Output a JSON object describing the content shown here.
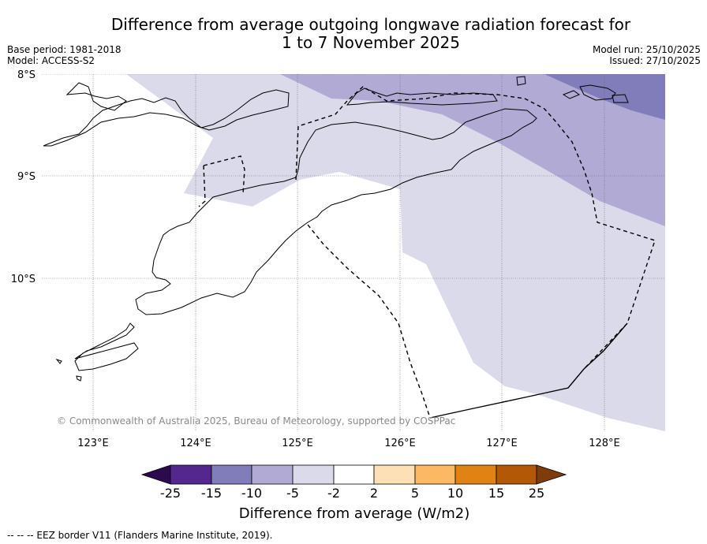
{
  "title": {
    "line1": "Difference from average outgoing longwave radiation forecast for",
    "line2": "1 to 7 November 2025"
  },
  "meta": {
    "base_period": "Base period: 1981-2018",
    "model": "Model: ACCESS-S2",
    "model_run": "Model run: 25/10/2025",
    "issued": "Issued: 27/10/2025"
  },
  "map": {
    "lat_labels": [
      "8°S",
      "9°S",
      "10°S"
    ],
    "lon_labels": [
      "123°E",
      "124°E",
      "125°E",
      "126°E",
      "127°E",
      "128°E"
    ],
    "copyright": "© Commonwealth of Australia 2025, Bureau of Meteorology, supported by COSPPac"
  },
  "colorbar": {
    "labels": [
      "-25",
      "-15",
      "-10",
      "-5",
      "-2",
      "2",
      "5",
      "10",
      "15",
      "25"
    ],
    "colors": [
      "#2d0a4e",
      "#54278f",
      "#807dba",
      "#b0aad4",
      "#dadaeb",
      "#ffffff",
      "#fee0b6",
      "#fdb863",
      "#e08214",
      "#b35806",
      "#7f3b08"
    ],
    "title": "Difference from average (W/m2)"
  },
  "footer": "--  --  -- EEZ border V11 (Flanders Marine Institute, 2019)."
}
